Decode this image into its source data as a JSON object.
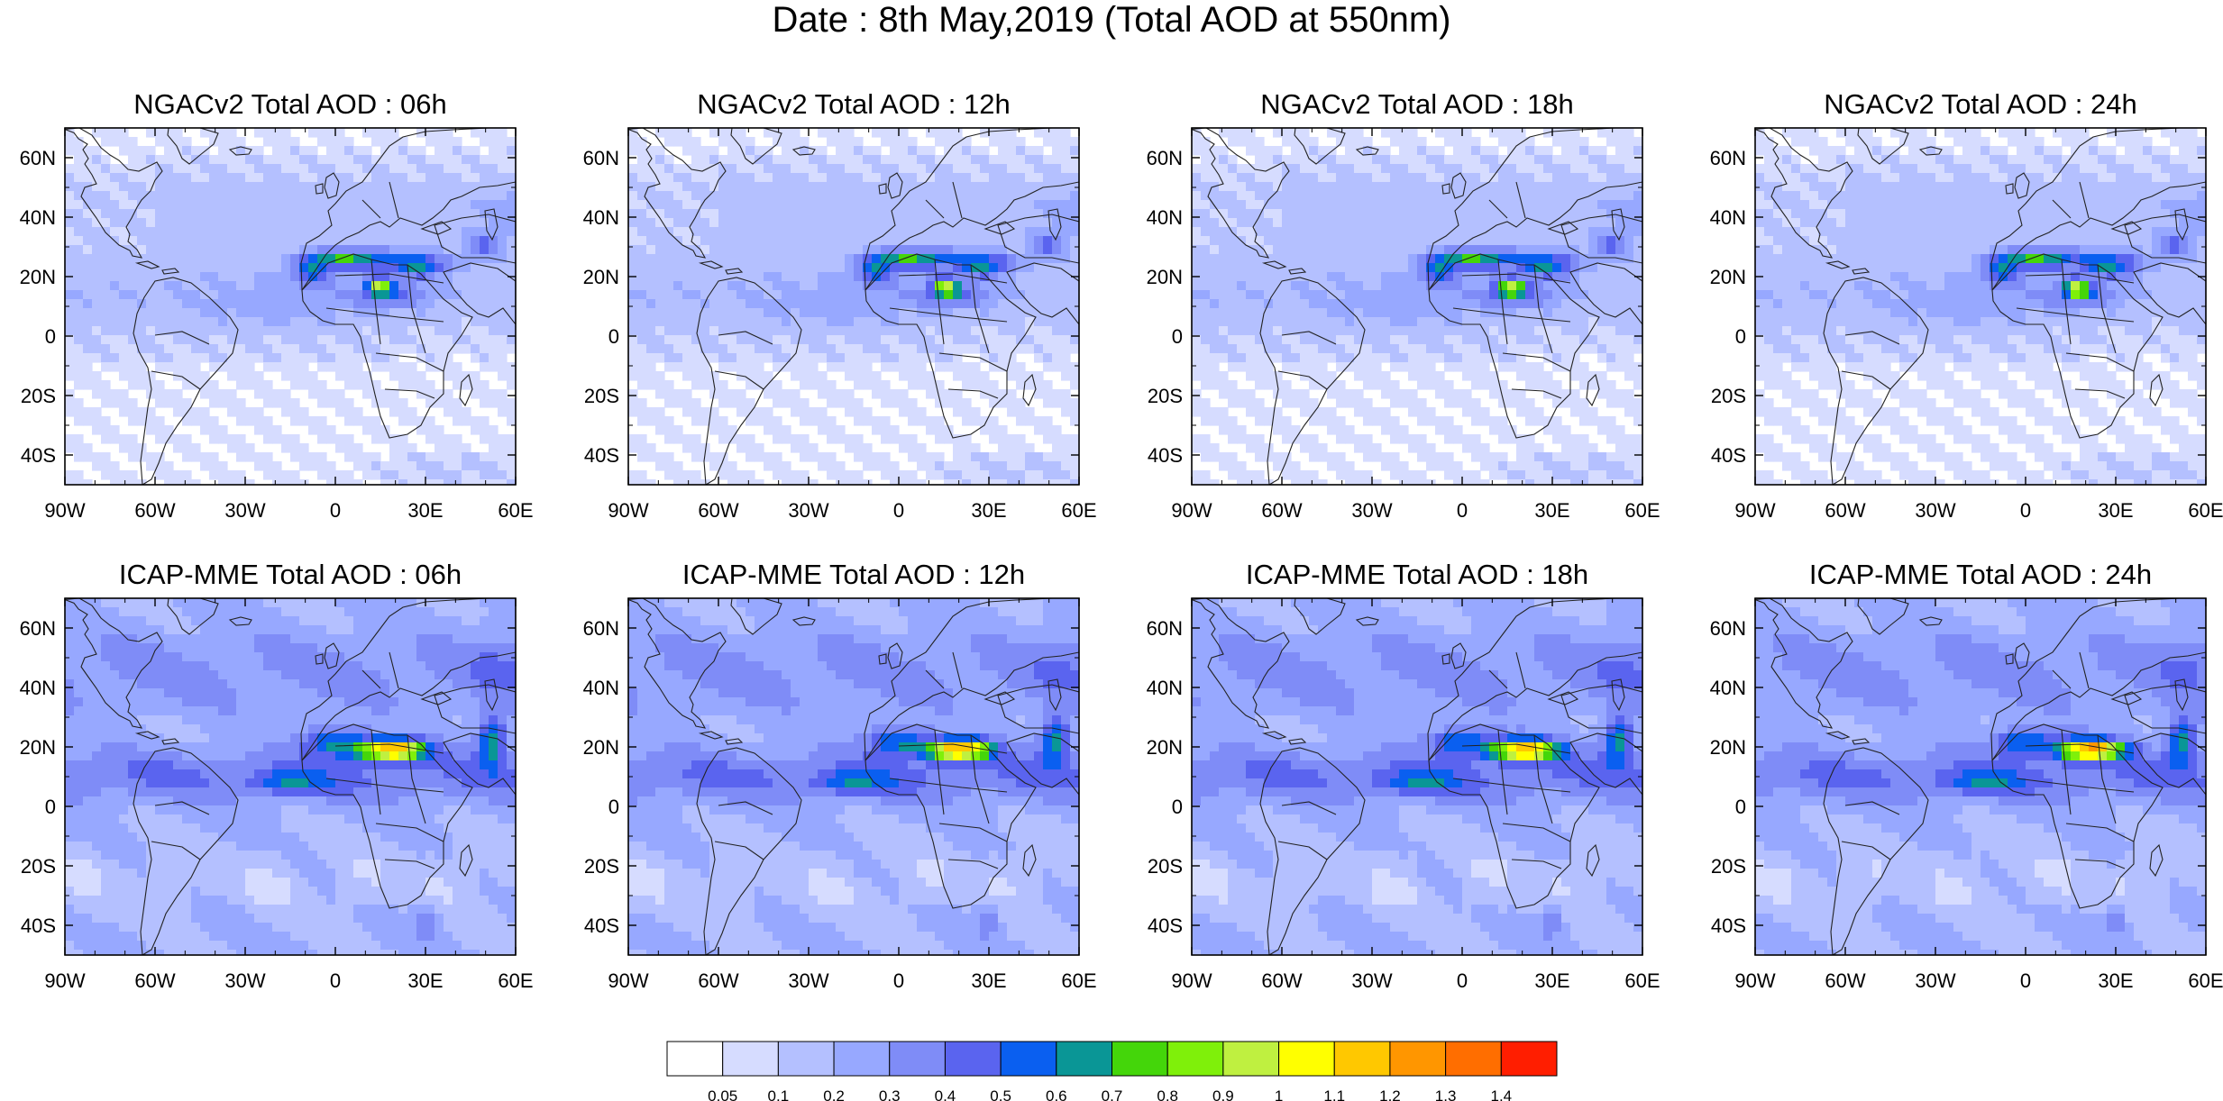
{
  "title": "Date : 8th May,2019 (Total AOD at 550nm)",
  "panels": [
    {
      "title": "NGACv2 Total AOD : 06h",
      "model": "ngac",
      "lead": 6
    },
    {
      "title": "NGACv2 Total AOD : 12h",
      "model": "ngac",
      "lead": 12
    },
    {
      "title": "NGACv2 Total AOD : 18h",
      "model": "ngac",
      "lead": 18
    },
    {
      "title": "NGACv2 Total AOD : 24h",
      "model": "ngac",
      "lead": 24
    },
    {
      "title": "ICAP-MME Total AOD : 06h",
      "model": "icap",
      "lead": 6
    },
    {
      "title": "ICAP-MME Total AOD : 12h",
      "model": "icap",
      "lead": 12
    },
    {
      "title": "ICAP-MME Total AOD : 18h",
      "model": "icap",
      "lead": 18
    },
    {
      "title": "ICAP-MME Total AOD : 24h",
      "model": "icap",
      "lead": 24
    }
  ],
  "map_extent": {
    "lon": [
      -90,
      60
    ],
    "lat": [
      -50,
      70
    ]
  },
  "lat_ticks": [
    {
      "value": 60,
      "label": "60N"
    },
    {
      "value": 40,
      "label": "40N"
    },
    {
      "value": 20,
      "label": "20N"
    },
    {
      "value": 0,
      "label": "0"
    },
    {
      "value": -20,
      "label": "20S"
    },
    {
      "value": -40,
      "label": "40S"
    }
  ],
  "lon_ticks": [
    {
      "value": -90,
      "label": "90W"
    },
    {
      "value": -60,
      "label": "60W"
    },
    {
      "value": -30,
      "label": "30W"
    },
    {
      "value": 0,
      "label": "0"
    },
    {
      "value": 30,
      "label": "30E"
    },
    {
      "value": 60,
      "label": "60E"
    }
  ],
  "colorbar": {
    "labels": [
      "0.05",
      "0.1",
      "0.2",
      "0.3",
      "0.4",
      "0.5",
      "0.6",
      "0.7",
      "0.8",
      "0.9",
      "1",
      "1.1",
      "1.2",
      "1.3",
      "1.4"
    ],
    "colors": [
      "#ffffff",
      "#d6dcff",
      "#b4c0ff",
      "#97a8ff",
      "#7f8cf7",
      "#5a64ef",
      "#0a5ff0",
      "#0a9696",
      "#44d60a",
      "#7ff00a",
      "#bff040",
      "#ffff00",
      "#ffc800",
      "#ff9600",
      "#ff6e00",
      "#ff1e00"
    ]
  }
}
